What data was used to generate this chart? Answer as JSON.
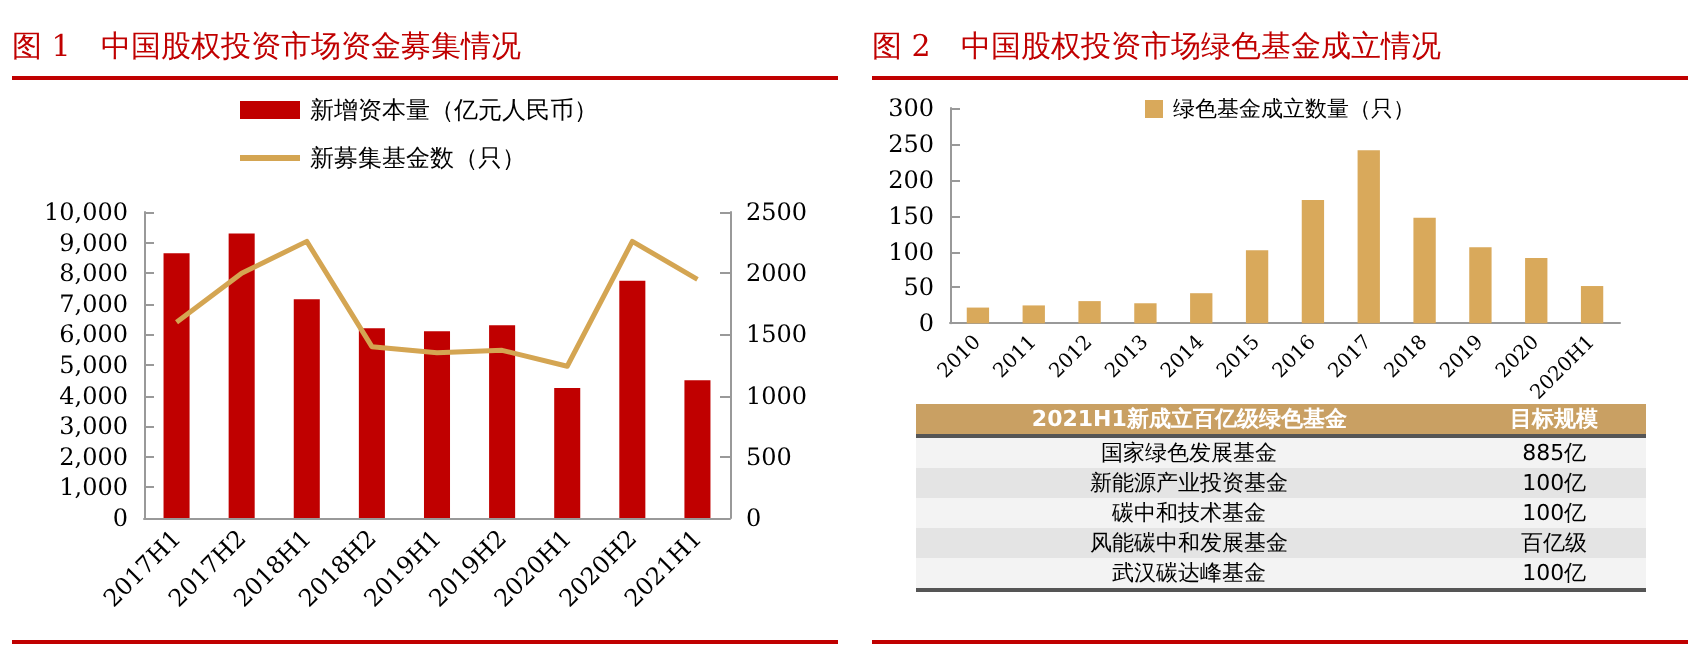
{
  "chart_data": [
    {
      "type": "bar",
      "title": "图 1　中国股权投资市场资金募集情况",
      "categories": [
        "2017H1",
        "2017H2",
        "2018H1",
        "2018H2",
        "2019H1",
        "2019H2",
        "2020H1",
        "2020H2",
        "2021H1"
      ],
      "series": [
        {
          "name": "新增资本量（亿元人民币）",
          "color": "#c00000",
          "values": [
            8650,
            9300,
            7150,
            6200,
            6100,
            6300,
            4250,
            7750,
            4500
          ]
        },
        {
          "type": "line",
          "axis": "y2",
          "name": "新募集基金数（只）",
          "color": "#d4a552",
          "values": [
            1600,
            2000,
            2260,
            1400,
            1350,
            1370,
            1240,
            2260,
            1950
          ]
        }
      ],
      "ylim": [
        0,
        10000
      ],
      "yticks": [
        0,
        {
          "value": 1000,
          "label": "1,000"
        },
        {
          "value": 2000,
          "label": "2,000"
        },
        {
          "value": 3000,
          "label": "3,000"
        },
        {
          "value": 4000,
          "label": "4,000"
        },
        {
          "value": 5000,
          "label": "5,000"
        },
        {
          "value": 6000,
          "label": "6,000"
        },
        {
          "value": 7000,
          "label": "7,000"
        },
        {
          "value": 8000,
          "label": "8,000"
        },
        {
          "value": 9000,
          "label": "9,000"
        },
        {
          "value": 10000,
          "label": "10,000"
        }
      ],
      "y2lim": [
        0,
        2500
      ],
      "y2ticks": [
        0,
        500,
        1000,
        1500,
        2000,
        2500
      ],
      "grid": false,
      "legend": "top",
      "marker": "none"
    },
    {
      "type": "bar",
      "title": "图 2　中国股权投资市场绿色基金成立情况",
      "categories": [
        "2010",
        "2011",
        "2012",
        "2013",
        "2014",
        "2015",
        "2016",
        "2017",
        "2018",
        "2019",
        "2020",
        "2020H1"
      ],
      "series": [
        {
          "name": "绿色基金成立数量（只）",
          "color": "#d9a95b",
          "values": [
            22,
            25,
            31,
            28,
            42,
            102,
            172,
            241,
            147,
            106,
            91,
            52
          ]
        }
      ],
      "ylim": [
        0,
        300
      ],
      "yticks": [
        0,
        50,
        100,
        150,
        200,
        250,
        300
      ],
      "grid": false,
      "legend": "top"
    },
    {
      "type": "other",
      "title": "2021H1新成立百亿级绿色基金",
      "annotations": [
        "目标规模",
        "国家绿色发展基金",
        "885亿",
        "新能源产业投资基金",
        "100亿",
        "碳中和技术基金",
        "100亿",
        "风能碳中和发展基金",
        "百亿级",
        "武汉碳达峰基金",
        "100亿"
      ]
    }
  ]
}
